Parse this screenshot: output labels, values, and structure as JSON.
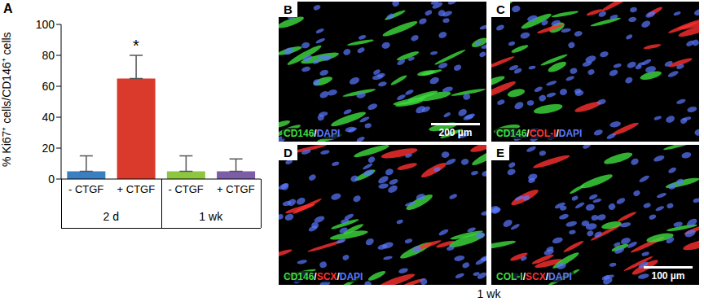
{
  "chart_data": {
    "type": "bar",
    "panel_label": "A",
    "ylabel": "% Ki67⁺ cells/CD146⁺ cells",
    "categories": [
      "- CTGF",
      "+ CTGF",
      "- CTGF",
      "+ CTGF"
    ],
    "groups": [
      "2 d",
      "1 wk"
    ],
    "values": [
      5,
      65,
      5,
      5
    ],
    "errors": [
      10,
      15,
      10,
      8
    ],
    "colors": [
      "#3a7fc1",
      "#d93a2b",
      "#8dc63f",
      "#7b5ea7"
    ],
    "significance": [
      null,
      "*",
      null,
      null
    ],
    "ylim": [
      0,
      100
    ],
    "yticks": [
      0,
      20,
      40,
      60,
      80,
      100
    ],
    "grid": false
  },
  "image_panels": [
    {
      "panel_label": "B",
      "stains": [
        {
          "text": "CD146",
          "color": "#3fdc3f"
        },
        {
          "text": "DAPI",
          "color": "#5a78ff"
        }
      ],
      "scale_bar": "200 µm"
    },
    {
      "panel_label": "C",
      "stains": [
        {
          "text": "CD146",
          "color": "#3fdc3f"
        },
        {
          "text": "COL-I",
          "color": "#ff3030"
        },
        {
          "text": "DAPI",
          "color": "#5a78ff"
        }
      ]
    },
    {
      "panel_label": "D",
      "stains": [
        {
          "text": "CD146",
          "color": "#3fdc3f"
        },
        {
          "text": "SCX",
          "color": "#ff3030"
        },
        {
          "text": "DAPI",
          "color": "#5a78ff"
        }
      ]
    },
    {
      "panel_label": "E",
      "stains": [
        {
          "text": "COL-I",
          "color": "#3fdc3f"
        },
        {
          "text": "SCX",
          "color": "#ff3030"
        },
        {
          "text": "DAPI",
          "color": "#5a78ff"
        }
      ],
      "scale_bar": "100 µm"
    }
  ],
  "caption": "1 wk"
}
